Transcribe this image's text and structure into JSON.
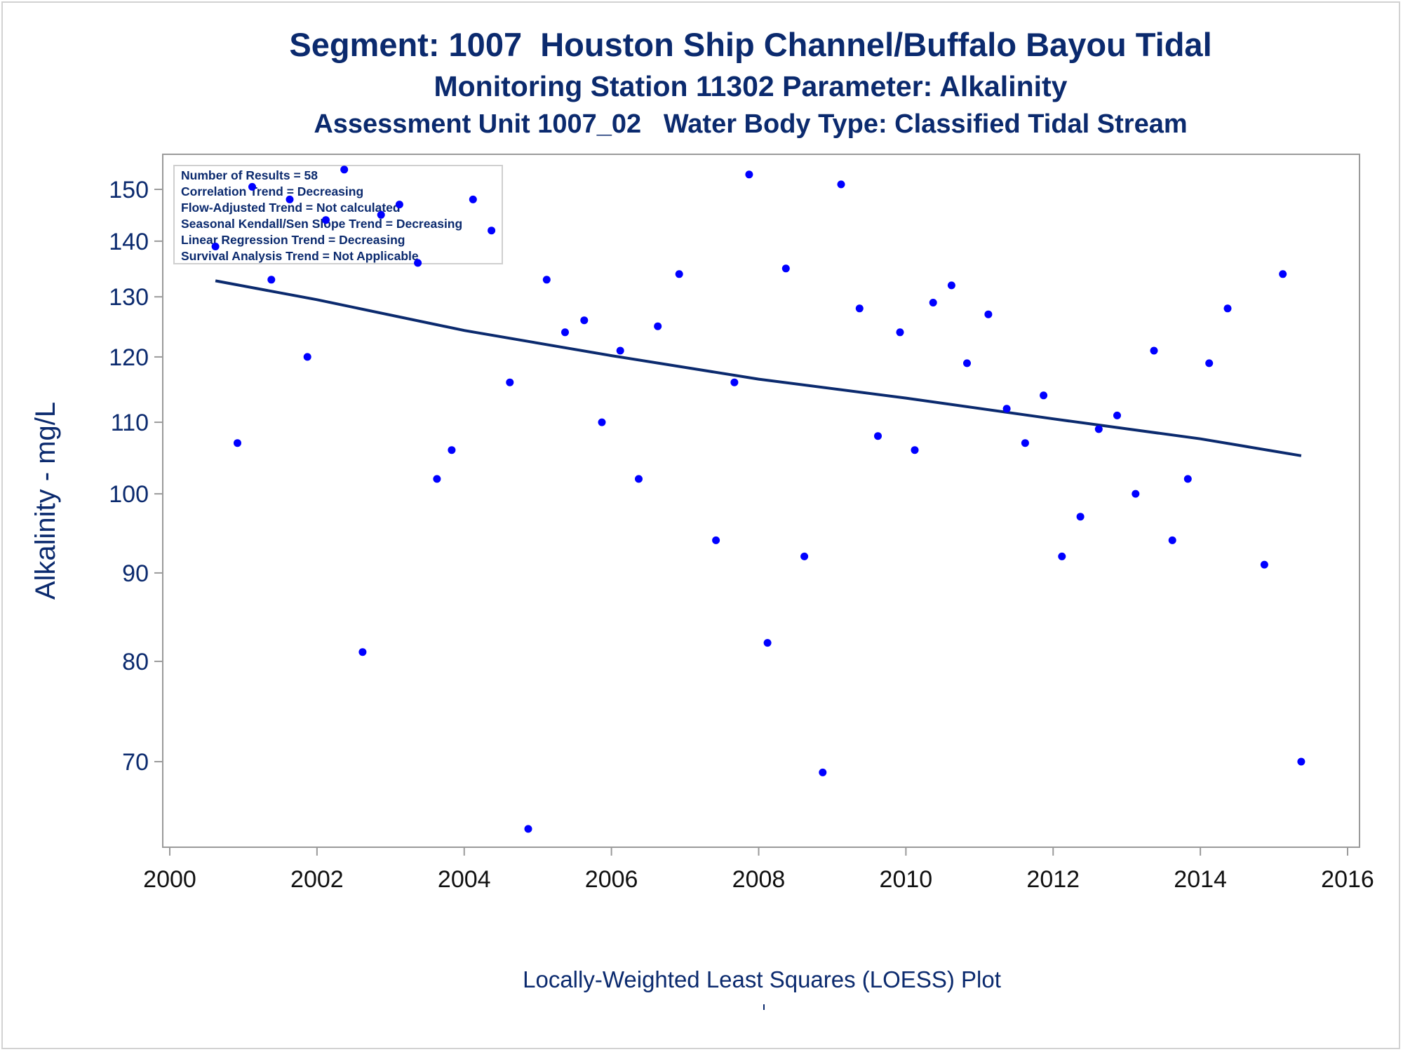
{
  "titles": {
    "line1": "Segment: 1007  Houston Ship Channel/Buffalo Bayou Tidal",
    "line2": "Monitoring Station 11302 Parameter: Alkalinity",
    "line3": "Assessment Unit 1007_02   Water Body Type: Classified Tidal Stream"
  },
  "footnote": "Locally-Weighted Least Squares (LOESS) Plot",
  "colors": {
    "title": "#0b2a6e",
    "points": "#0000ff",
    "line": "#0b2a6e",
    "axis": "#9a9a9a"
  },
  "chart_data": {
    "type": "scatter",
    "ylabel": "Alkalinity - mg/L",
    "xlabel": "",
    "x_ticks": [
      "2000",
      "2002",
      "2004",
      "2006",
      "2008",
      "2010",
      "2012",
      "2014",
      "2016"
    ],
    "y_ticks": [
      "70",
      "80",
      "90",
      "100",
      "110",
      "120",
      "130",
      "140",
      "150"
    ],
    "xlim": [
      2000,
      2016
    ],
    "ylim": [
      63.5,
      155
    ],
    "y_scale": "log",
    "stats_box": [
      "Number of Results = 58",
      "Correlation Trend = Decreasing",
      "Flow-Adjusted Trend = Not calculated",
      "Seasonal Kendall/Sen Slope Trend = Decreasing",
      "Linear Regression Trend = Decreasing",
      "Survival Analysis Trend = Not Applicable"
    ],
    "points": [
      {
        "x": 2000.62,
        "y": 139
      },
      {
        "x": 2000.92,
        "y": 107
      },
      {
        "x": 2001.12,
        "y": 150.5
      },
      {
        "x": 2001.38,
        "y": 133
      },
      {
        "x": 2001.63,
        "y": 148
      },
      {
        "x": 2001.87,
        "y": 120
      },
      {
        "x": 2002.12,
        "y": 144
      },
      {
        "x": 2002.37,
        "y": 154
      },
      {
        "x": 2002.62,
        "y": 81
      },
      {
        "x": 2002.87,
        "y": 145
      },
      {
        "x": 2003.12,
        "y": 147
      },
      {
        "x": 2003.37,
        "y": 136
      },
      {
        "x": 2003.63,
        "y": 102
      },
      {
        "x": 2003.83,
        "y": 106
      },
      {
        "x": 2004.12,
        "y": 148
      },
      {
        "x": 2004.37,
        "y": 142
      },
      {
        "x": 2004.62,
        "y": 116
      },
      {
        "x": 2004.87,
        "y": 64
      },
      {
        "x": 2005.12,
        "y": 133
      },
      {
        "x": 2005.37,
        "y": 124
      },
      {
        "x": 2005.63,
        "y": 126
      },
      {
        "x": 2005.87,
        "y": 110
      },
      {
        "x": 2006.12,
        "y": 121
      },
      {
        "x": 2006.37,
        "y": 102
      },
      {
        "x": 2006.63,
        "y": 125
      },
      {
        "x": 2006.92,
        "y": 134
      },
      {
        "x": 2007.42,
        "y": 94
      },
      {
        "x": 2007.67,
        "y": 116
      },
      {
        "x": 2007.87,
        "y": 153
      },
      {
        "x": 2008.12,
        "y": 82
      },
      {
        "x": 2008.37,
        "y": 135
      },
      {
        "x": 2008.62,
        "y": 92
      },
      {
        "x": 2008.87,
        "y": 69
      },
      {
        "x": 2009.12,
        "y": 151
      },
      {
        "x": 2009.37,
        "y": 128
      },
      {
        "x": 2009.62,
        "y": 108
      },
      {
        "x": 2009.92,
        "y": 124
      },
      {
        "x": 2010.12,
        "y": 106
      },
      {
        "x": 2010.37,
        "y": 129
      },
      {
        "x": 2010.62,
        "y": 132
      },
      {
        "x": 2010.83,
        "y": 119
      },
      {
        "x": 2011.12,
        "y": 127
      },
      {
        "x": 2011.37,
        "y": 112
      },
      {
        "x": 2011.62,
        "y": 107
      },
      {
        "x": 2011.87,
        "y": 114
      },
      {
        "x": 2012.12,
        "y": 92
      },
      {
        "x": 2012.37,
        "y": 97
      },
      {
        "x": 2012.62,
        "y": 109
      },
      {
        "x": 2012.87,
        "y": 111
      },
      {
        "x": 2013.12,
        "y": 100
      },
      {
        "x": 2013.37,
        "y": 121
      },
      {
        "x": 2013.62,
        "y": 94
      },
      {
        "x": 2013.83,
        "y": 102
      },
      {
        "x": 2014.12,
        "y": 119
      },
      {
        "x": 2014.37,
        "y": 128
      },
      {
        "x": 2014.87,
        "y": 91
      },
      {
        "x": 2015.12,
        "y": 134
      },
      {
        "x": 2015.37,
        "y": 70
      }
    ],
    "trend_line": [
      {
        "x": 2000.62,
        "y": 132.8
      },
      {
        "x": 2002.0,
        "y": 129.5
      },
      {
        "x": 2004.0,
        "y": 124.3
      },
      {
        "x": 2006.0,
        "y": 120.2
      },
      {
        "x": 2008.0,
        "y": 116.5
      },
      {
        "x": 2010.0,
        "y": 113.6
      },
      {
        "x": 2012.0,
        "y": 110.5
      },
      {
        "x": 2014.0,
        "y": 107.6
      },
      {
        "x": 2015.37,
        "y": 105.2
      }
    ]
  }
}
